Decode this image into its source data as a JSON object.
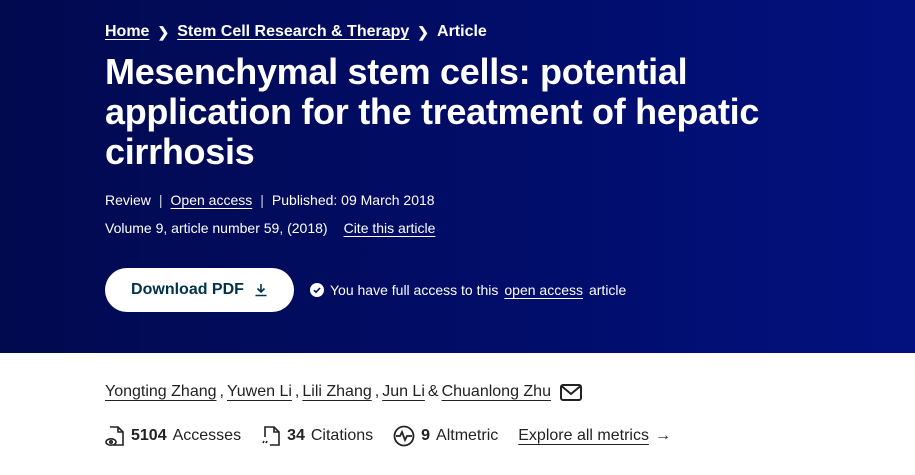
{
  "breadcrumb": {
    "items": [
      "Home",
      "Stem Cell Research & Therapy"
    ],
    "current": "Article"
  },
  "title": "Mesenchymal stem cells: potential application for the treatment of hepatic cirrhosis",
  "meta": {
    "type": "Review",
    "open_access": "Open access",
    "published": "Published: 09 March 2018",
    "volume": "Volume 9, article number 59, (2018)",
    "cite": "Cite this article"
  },
  "actions": {
    "download": "Download PDF",
    "access_pre": "You have full access to this",
    "access_link": "open access",
    "access_post": "article"
  },
  "authors": [
    "Yongting Zhang",
    "Yuwen Li",
    "Lili Zhang",
    "Jun Li",
    "Chuanlong Zhu"
  ],
  "metrics": {
    "accesses": "5104",
    "accesses_label": "Accesses",
    "citations": "34",
    "citations_label": "Citations",
    "altmetric": "9",
    "altmetric_label": "Altmetric",
    "explore": "Explore all metrics"
  },
  "colors": {
    "hero_bg": "#010d6b",
    "button_text": "#01324b"
  }
}
